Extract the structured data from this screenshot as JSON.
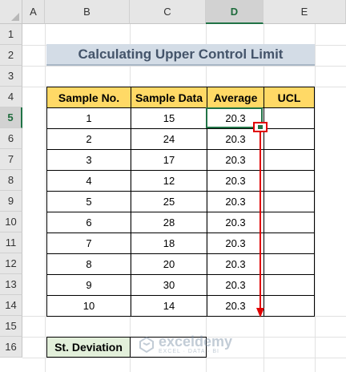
{
  "columns": [
    "A",
    "B",
    "C",
    "D",
    "E"
  ],
  "rows": [
    "1",
    "2",
    "3",
    "4",
    "5",
    "6",
    "7",
    "8",
    "9",
    "10",
    "11",
    "12",
    "13",
    "14",
    "15",
    "16"
  ],
  "title": "Calculating Upper Control Limit",
  "table": {
    "headers": [
      "Sample No.",
      "Sample Data",
      "Average",
      "UCL"
    ],
    "rows": [
      {
        "no": "1",
        "data": "15",
        "avg": "20.3",
        "ucl": ""
      },
      {
        "no": "2",
        "data": "24",
        "avg": "20.3",
        "ucl": ""
      },
      {
        "no": "3",
        "data": "17",
        "avg": "20.3",
        "ucl": ""
      },
      {
        "no": "4",
        "data": "12",
        "avg": "20.3",
        "ucl": ""
      },
      {
        "no": "5",
        "data": "25",
        "avg": "20.3",
        "ucl": ""
      },
      {
        "no": "6",
        "data": "28",
        "avg": "20.3",
        "ucl": ""
      },
      {
        "no": "7",
        "data": "18",
        "avg": "20.3",
        "ucl": ""
      },
      {
        "no": "8",
        "data": "20",
        "avg": "20.3",
        "ucl": ""
      },
      {
        "no": "9",
        "data": "30",
        "avg": "20.3",
        "ucl": ""
      },
      {
        "no": "10",
        "data": "14",
        "avg": "20.3",
        "ucl": ""
      }
    ]
  },
  "stdev": {
    "label": "St. Deviation",
    "value": ""
  },
  "watermark": {
    "name": "exceldemy",
    "sub": "EXCEL · DATA · BI"
  },
  "colors": {
    "header_fill": "#ffd966",
    "title_fill": "#d3dce6",
    "stdev_fill": "#e2efda",
    "selection": "#217346",
    "annotation": "#e00000"
  },
  "selected": {
    "column": "D",
    "row": "5"
  }
}
